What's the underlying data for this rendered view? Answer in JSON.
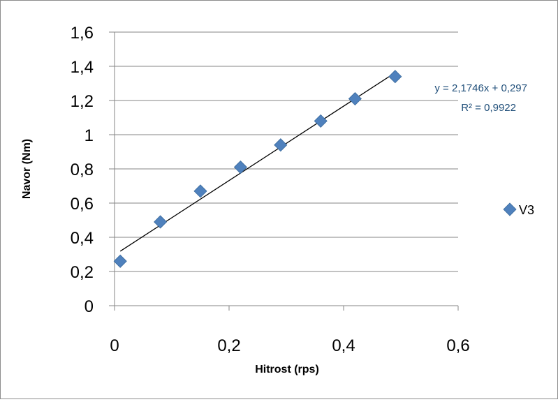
{
  "chart_data": {
    "type": "scatter",
    "xlabel": "Hitrost (rps)",
    "ylabel": "Navor (Nm)",
    "xlim": [
      0,
      0.6
    ],
    "ylim": [
      0,
      1.6
    ],
    "x_ticks": [
      "0",
      "0,2",
      "0,4",
      "0,6"
    ],
    "y_ticks": [
      "0",
      "0,2",
      "0,4",
      "0,6",
      "0,8",
      "1",
      "1,2",
      "1,4",
      "1,6"
    ],
    "grid": "horizontal major gridlines",
    "legend_position": "right",
    "series": [
      {
        "name": "V3",
        "marker": "diamond",
        "color": "#4f81bd",
        "x": [
          0.01,
          0.08,
          0.15,
          0.22,
          0.29,
          0.36,
          0.42,
          0.49
        ],
        "y": [
          0.26,
          0.49,
          0.67,
          0.81,
          0.94,
          1.08,
          1.21,
          1.34
        ]
      }
    ],
    "trendline": {
      "type": "linear",
      "slope": 2.1746,
      "intercept": 0.297,
      "x_range": [
        0.01,
        0.49
      ],
      "color": "#000000",
      "equation_label": "y = 2,1746x + 0,297",
      "r2_label": "R² = 0,9922",
      "label_color": "#1f4e79"
    }
  }
}
